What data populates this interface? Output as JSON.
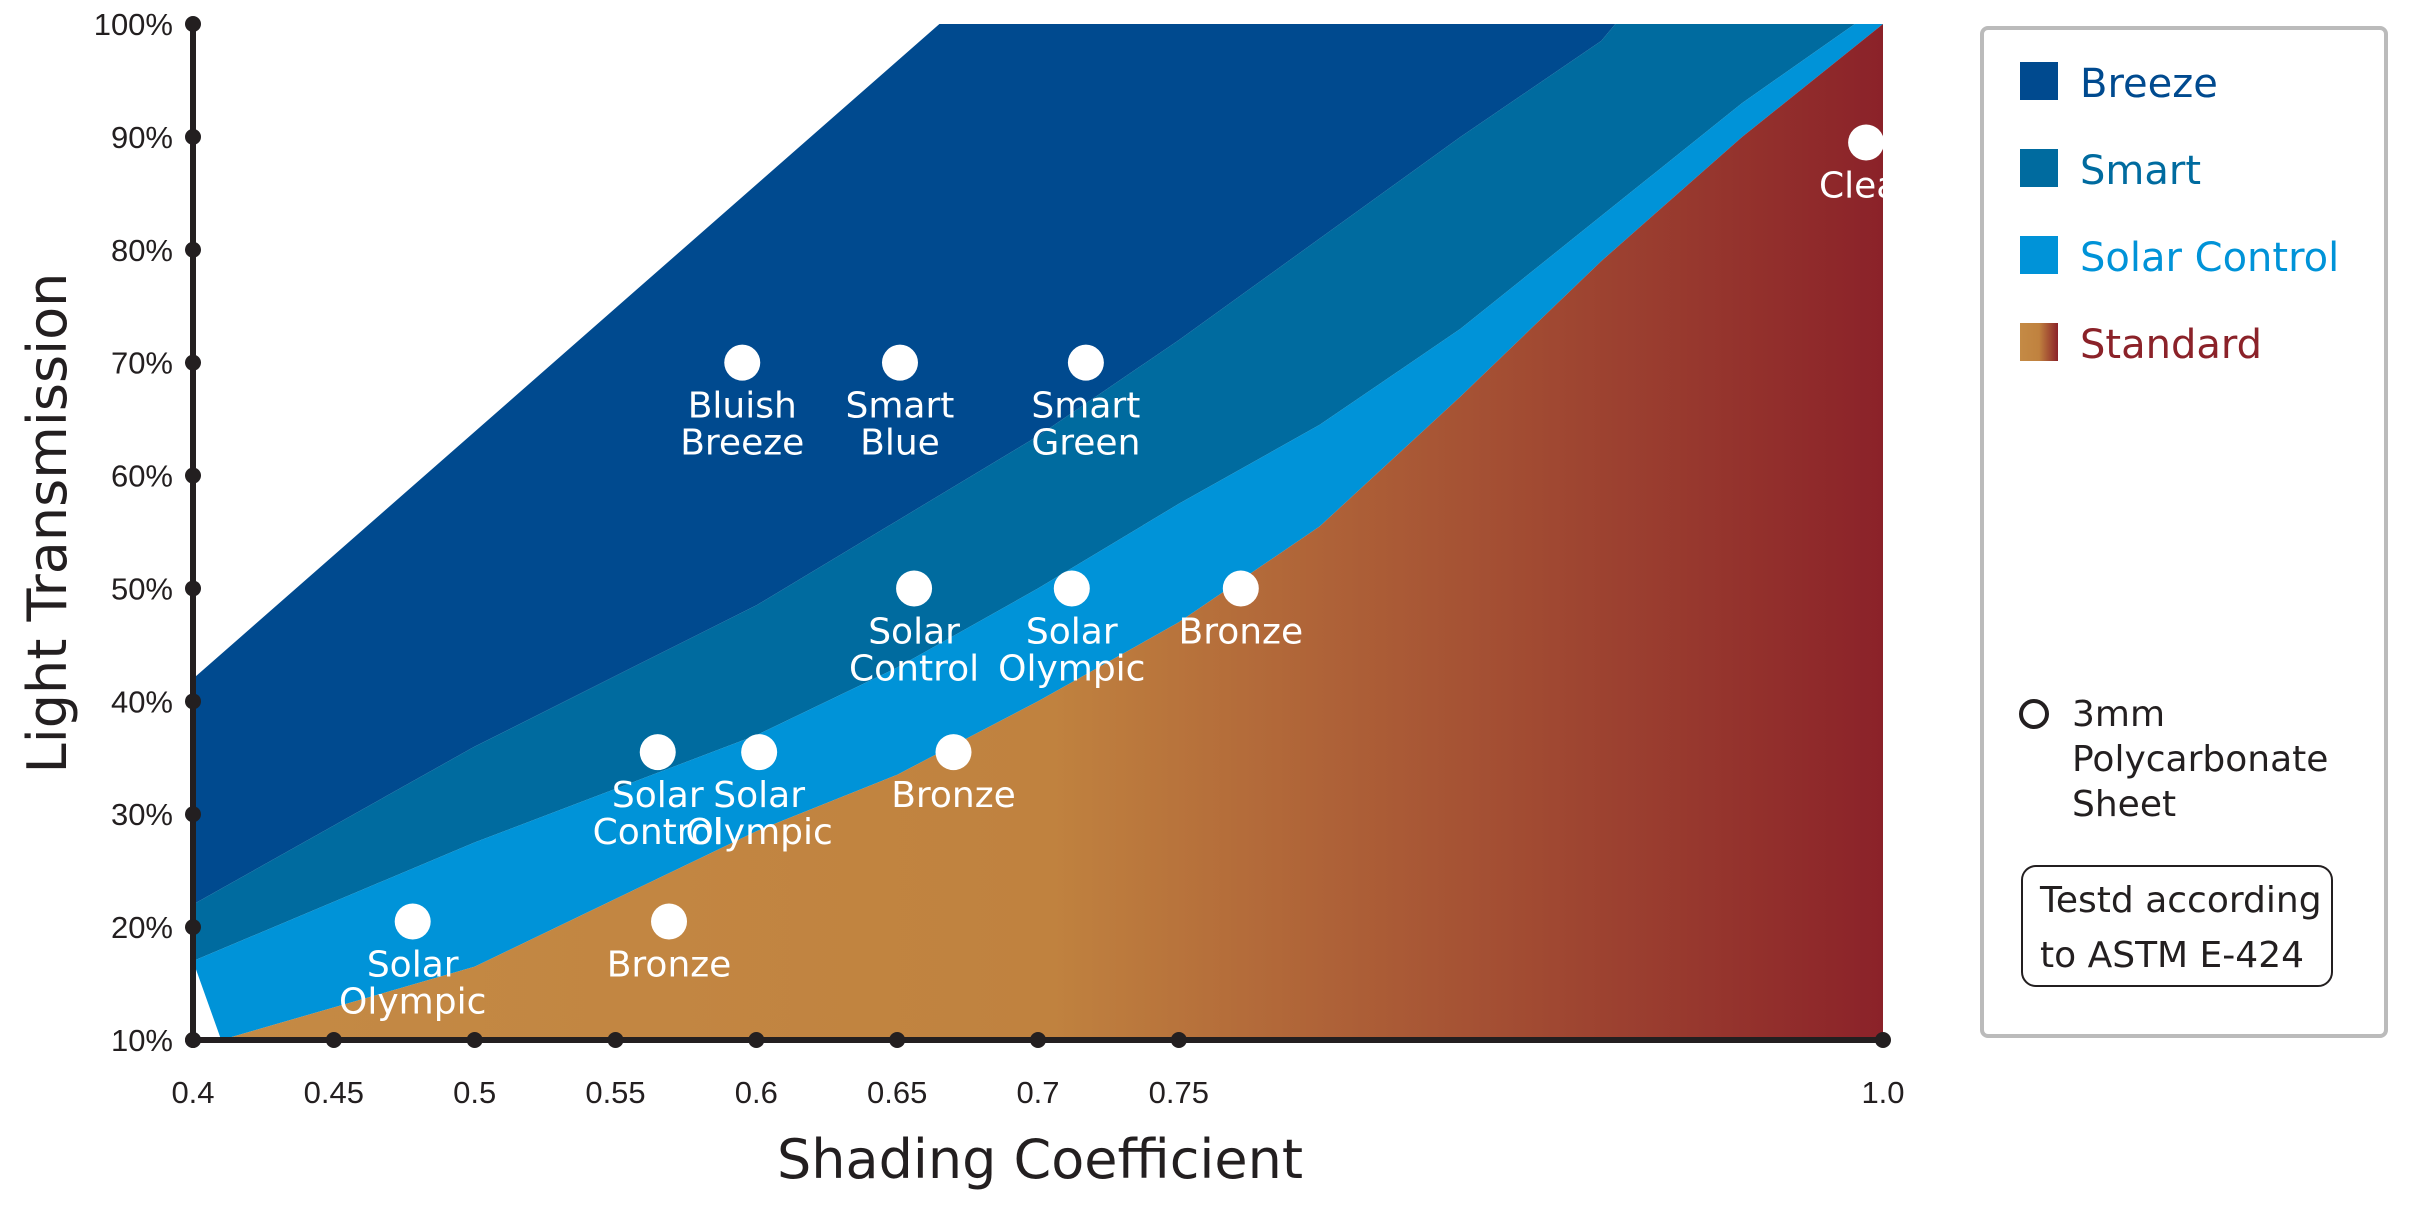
{
  "chart_data": {
    "type": "area",
    "xlabel": "Shading Coefficient",
    "ylabel": "Light Transmission",
    "xlim": [
      0.4,
      1.0
    ],
    "ylim": [
      10,
      100
    ],
    "x_ticks": [
      {
        "value": 0.4,
        "label": "0.4"
      },
      {
        "value": 0.45,
        "label": "0.45"
      },
      {
        "value": 0.5,
        "label": "0.5"
      },
      {
        "value": 0.55,
        "label": "0.55"
      },
      {
        "value": 0.6,
        "label": "0.6"
      },
      {
        "value": 0.65,
        "label": "0.65"
      },
      {
        "value": 0.7,
        "label": "0.7"
      },
      {
        "value": 0.75,
        "label": "0.75"
      },
      {
        "value": 1.0,
        "label": "1.0"
      }
    ],
    "y_ticks": [
      {
        "value": 10,
        "label": "10%"
      },
      {
        "value": 20,
        "label": "20%"
      },
      {
        "value": 30,
        "label": "30%"
      },
      {
        "value": 40,
        "label": "40%"
      },
      {
        "value": 50,
        "label": "50%"
      },
      {
        "value": 60,
        "label": "60%"
      },
      {
        "value": 70,
        "label": "70%"
      },
      {
        "value": 80,
        "label": "80%"
      },
      {
        "value": 90,
        "label": "90%"
      },
      {
        "value": 100,
        "label": "100%"
      }
    ],
    "regions": [
      {
        "name": "Breeze",
        "color": "#004a8f",
        "upper": [
          [
            0.4,
            42
          ],
          [
            0.665,
            100
          ],
          [
            1.0,
            100
          ]
        ],
        "lower": [
          [
            0.4,
            22
          ],
          [
            0.5,
            36
          ],
          [
            0.6,
            48.5
          ],
          [
            0.65,
            56
          ],
          [
            0.7,
            63.5
          ],
          [
            0.75,
            72
          ],
          [
            0.8,
            81
          ],
          [
            0.85,
            90
          ],
          [
            0.9,
            98.5
          ],
          [
            0.905,
            100
          ]
        ]
      },
      {
        "name": "Smart",
        "color": "#006b9f",
        "upper": [
          [
            0.4,
            22
          ],
          [
            0.5,
            36
          ],
          [
            0.6,
            48.5
          ],
          [
            0.65,
            56
          ],
          [
            0.7,
            63.5
          ],
          [
            0.75,
            72
          ],
          [
            0.8,
            81
          ],
          [
            0.85,
            90
          ],
          [
            0.9,
            98.5
          ],
          [
            0.905,
            100
          ]
        ],
        "lower": [
          [
            0.4,
            17
          ],
          [
            0.5,
            27.5
          ],
          [
            0.6,
            37
          ],
          [
            0.65,
            43
          ],
          [
            0.7,
            50
          ],
          [
            0.75,
            57.5
          ],
          [
            0.8,
            64.5
          ],
          [
            0.85,
            73
          ],
          [
            0.9,
            83
          ],
          [
            0.95,
            93
          ],
          [
            0.99,
            100
          ]
        ]
      },
      {
        "name": "Solar Control",
        "color": "#0093d8",
        "upper": [
          [
            0.4,
            17
          ],
          [
            0.5,
            27.5
          ],
          [
            0.6,
            37
          ],
          [
            0.65,
            43
          ],
          [
            0.7,
            50
          ],
          [
            0.75,
            57.5
          ],
          [
            0.8,
            64.5
          ],
          [
            0.85,
            73
          ],
          [
            0.9,
            83
          ],
          [
            0.95,
            93
          ],
          [
            0.99,
            100
          ]
        ],
        "lower": [
          [
            0.41,
            10
          ],
          [
            0.5,
            16.5
          ],
          [
            0.6,
            28.5
          ],
          [
            0.65,
            33.5
          ],
          [
            0.7,
            40
          ],
          [
            0.75,
            47
          ],
          [
            0.8,
            55.5
          ],
          [
            0.85,
            67
          ],
          [
            0.9,
            79
          ],
          [
            0.95,
            90
          ],
          [
            1.0,
            100
          ]
        ]
      },
      {
        "name": "Standard",
        "color_start": "#c48a45",
        "color_end": "#8b2229",
        "upper": [
          [
            0.41,
            10
          ],
          [
            0.5,
            16.5
          ],
          [
            0.6,
            28.5
          ],
          [
            0.65,
            33.5
          ],
          [
            0.7,
            40
          ],
          [
            0.75,
            47
          ],
          [
            0.8,
            55.5
          ],
          [
            0.85,
            67
          ],
          [
            0.9,
            79
          ],
          [
            0.95,
            90
          ],
          [
            1.0,
            100
          ]
        ],
        "lower": [
          [
            0.41,
            10
          ],
          [
            1.0,
            10
          ]
        ]
      }
    ],
    "points": [
      {
        "x": 0.595,
        "y": 70,
        "label": [
          "Bluish",
          "Breeze"
        ]
      },
      {
        "x": 0.651,
        "y": 70,
        "label": [
          "Smart",
          "Blue"
        ]
      },
      {
        "x": 0.717,
        "y": 70,
        "label": [
          "Smart",
          "Green"
        ]
      },
      {
        "x": 0.656,
        "y": 50,
        "label": [
          "Solar",
          "Control"
        ]
      },
      {
        "x": 0.712,
        "y": 50,
        "label": [
          "Solar",
          "Olympic"
        ]
      },
      {
        "x": 0.772,
        "y": 50,
        "label": [
          "Bronze"
        ]
      },
      {
        "x": 0.565,
        "y": 35.5,
        "label": [
          "Solar",
          "Control"
        ]
      },
      {
        "x": 0.601,
        "y": 35.5,
        "label": [
          "Solar",
          "Olympic"
        ]
      },
      {
        "x": 0.67,
        "y": 35.5,
        "label": [
          "Bronze"
        ]
      },
      {
        "x": 0.478,
        "y": 20.5,
        "label": [
          "Solar",
          "Olympic"
        ]
      },
      {
        "x": 0.569,
        "y": 20.5,
        "label": [
          "Bronze"
        ]
      },
      {
        "x": 0.994,
        "y": 89.5,
        "label": [
          "Clear"
        ]
      }
    ]
  },
  "legend": {
    "items": [
      {
        "label": "Breeze",
        "color": "#004a8f",
        "text_color": "#004a8f"
      },
      {
        "label": "Smart",
        "color": "#006b9f",
        "text_color": "#006b9f"
      },
      {
        "label": "Solar Control",
        "color": "#0093d8",
        "text_color": "#0093d8"
      },
      {
        "label": "Standard",
        "color_start": "#c48a45",
        "color_end": "#8b2229",
        "text_color": "#8b2229"
      }
    ],
    "marker_label": [
      "3mm",
      "Polycarbonate",
      "Sheet"
    ],
    "note": [
      "Testd according",
      "to ASTM E-424"
    ]
  }
}
